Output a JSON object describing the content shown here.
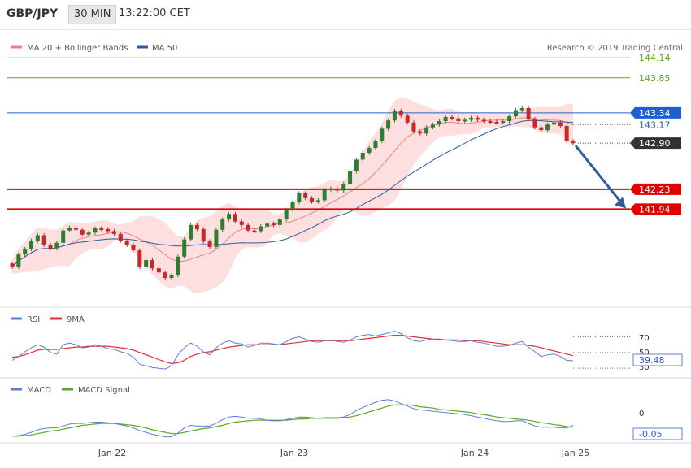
{
  "header": {
    "symbol": "GBP/JPY",
    "timeframe": "30 MIN",
    "time": "13:22:00 CET"
  },
  "credit": "Research © 2019 Trading Central",
  "colors": {
    "ma20": "#f08080",
    "ma50": "#2c5d9a",
    "resistance": "#5aaa1e",
    "support": "#e00000",
    "ma50_line": "#1f5fd6",
    "up": "#2e7d32",
    "down": "#c62828",
    "current": "#333333",
    "band_fill": "#fdd9d9",
    "rsi": "#5b7fd6",
    "rsi_ma": "#e03030",
    "macd": "#5b7fd6",
    "macd_signal": "#5aaa1e",
    "arrow": "#2c5d9a"
  },
  "chart_data": [
    {
      "type": "candlestick",
      "legend": [
        {
          "name": "MA 20 + Bollinger Bands",
          "color": "#f08080"
        },
        {
          "name": "MA 50",
          "color": "#2c5d9a"
        }
      ],
      "x_ticks": [
        "Jan 22",
        "Jan 23",
        "Jan 24",
        "Jan 25"
      ],
      "y_range": [
        140.55,
        144.45
      ],
      "levels": [
        {
          "value": 144.14,
          "label": "144.14",
          "kind": "resistance"
        },
        {
          "value": 143.85,
          "label": "143.85",
          "kind": "resistance"
        },
        {
          "value": 143.34,
          "label": "143.34",
          "kind": "ma50"
        },
        {
          "value": 143.17,
          "label": "143.17",
          "kind": "ma20"
        },
        {
          "value": 142.9,
          "label": "142.90",
          "kind": "current"
        },
        {
          "value": 142.23,
          "label": "142.23",
          "kind": "support"
        },
        {
          "value": 141.94,
          "label": "141.94",
          "kind": "support"
        }
      ],
      "forecast_arrow": {
        "from": 142.9,
        "to": 141.94
      },
      "close_path": [
        141.1,
        141.28,
        141.36,
        141.48,
        141.56,
        141.42,
        141.37,
        141.45,
        141.63,
        141.67,
        141.64,
        141.57,
        141.6,
        141.66,
        141.65,
        141.62,
        141.58,
        141.48,
        141.42,
        141.34,
        141.1,
        141.2,
        141.08,
        141.02,
        140.94,
        140.98,
        141.25,
        141.5,
        141.71,
        141.65,
        141.47,
        141.39,
        141.64,
        141.79,
        141.87,
        141.76,
        141.71,
        141.63,
        141.62,
        141.69,
        141.73,
        141.71,
        141.79,
        141.93,
        142.04,
        142.17,
        142.1,
        142.05,
        142.07,
        142.22,
        142.24,
        142.21,
        142.31,
        142.49,
        142.66,
        142.76,
        142.83,
        142.93,
        143.11,
        143.23,
        143.37,
        143.3,
        143.2,
        143.07,
        143.04,
        143.13,
        143.17,
        143.22,
        143.28,
        143.26,
        143.22,
        143.24,
        143.27,
        143.24,
        143.22,
        143.21,
        143.2,
        143.22,
        143.29,
        143.38,
        143.41,
        143.25,
        143.13,
        143.09,
        143.17,
        143.2,
        143.15,
        142.93,
        142.9
      ]
    },
    {
      "type": "line",
      "legend": [
        {
          "name": "RSI",
          "color": "#5b7fd6"
        },
        {
          "name": "9MA",
          "color": "#e03030"
        }
      ],
      "y_ticks": [
        "70",
        "50",
        "30"
      ],
      "y_range": [
        25,
        85
      ],
      "current_label": "39.48",
      "series": [
        {
          "name": "RSI",
          "values": [
            40,
            45,
            51,
            56,
            60,
            57,
            50,
            48,
            60,
            62,
            60,
            56,
            57,
            60,
            58,
            55,
            54,
            51,
            49,
            44,
            35,
            33,
            31,
            30,
            29,
            33,
            47,
            56,
            62,
            58,
            51,
            47,
            56,
            62,
            65,
            62,
            61,
            57,
            59,
            62,
            62,
            61,
            60,
            64,
            68,
            70,
            67,
            64,
            63,
            65,
            66,
            64,
            63,
            66,
            70,
            72,
            73,
            71,
            73,
            75,
            77,
            74,
            69,
            65,
            64,
            66,
            67,
            66,
            66,
            65,
            64,
            64,
            65,
            63,
            62,
            60,
            58,
            58,
            59,
            62,
            64,
            57,
            51,
            45,
            47,
            48,
            45,
            40,
            39.48
          ]
        },
        {
          "name": "9MA",
          "values": [
            44,
            45,
            47,
            50,
            53,
            54,
            54,
            54,
            55,
            56,
            57,
            57,
            58,
            58,
            58,
            58,
            57,
            56,
            55,
            53,
            50,
            47,
            44,
            41,
            38,
            36,
            37,
            40,
            45,
            48,
            50,
            51,
            53,
            55,
            57,
            58,
            59,
            60,
            60,
            60,
            60,
            60,
            60,
            61,
            62,
            63,
            64,
            65,
            65,
            65,
            65,
            65,
            65,
            65,
            66,
            67,
            68,
            69,
            70,
            71,
            72,
            72,
            71,
            70,
            69,
            68,
            67,
            67,
            66,
            66,
            66,
            65,
            65,
            65,
            64,
            63,
            62,
            61,
            60,
            60,
            60,
            59,
            58,
            56,
            54,
            52,
            50,
            48,
            46
          ]
        }
      ]
    },
    {
      "type": "line",
      "legend": [
        {
          "name": "MACD",
          "color": "#5b7fd6"
        },
        {
          "name": "MACD Signal",
          "color": "#5aaa1e"
        }
      ],
      "y_ticks": [
        "0"
      ],
      "current_label": "-0.05",
      "series": [
        {
          "name": "MACD",
          "values": [
            -0.22,
            -0.21,
            -0.19,
            -0.16,
            -0.12,
            -0.1,
            -0.09,
            -0.09,
            -0.06,
            -0.03,
            -0.02,
            -0.02,
            -0.01,
            0.0,
            0.0,
            -0.01,
            -0.02,
            -0.04,
            -0.06,
            -0.09,
            -0.13,
            -0.16,
            -0.19,
            -0.21,
            -0.23,
            -0.23,
            -0.17,
            -0.09,
            -0.05,
            -0.06,
            -0.06,
            -0.06,
            -0.02,
            0.04,
            0.08,
            0.09,
            0.08,
            0.06,
            0.06,
            0.05,
            0.03,
            0.02,
            0.02,
            0.04,
            0.06,
            0.08,
            0.08,
            0.07,
            0.06,
            0.07,
            0.07,
            0.07,
            0.08,
            0.12,
            0.18,
            0.23,
            0.27,
            0.31,
            0.34,
            0.35,
            0.33,
            0.29,
            0.25,
            0.21,
            0.19,
            0.18,
            0.17,
            0.16,
            0.15,
            0.14,
            0.13,
            0.12,
            0.1,
            0.08,
            0.06,
            0.04,
            0.02,
            0.01,
            0.01,
            0.02,
            0.02,
            -0.02,
            -0.06,
            -0.08,
            -0.08,
            -0.08,
            -0.09,
            -0.09,
            -0.05
          ]
        },
        {
          "name": "MACD Signal",
          "values": [
            -0.22,
            -0.22,
            -0.21,
            -0.2,
            -0.18,
            -0.16,
            -0.14,
            -0.13,
            -0.11,
            -0.09,
            -0.07,
            -0.05,
            -0.04,
            -0.03,
            -0.02,
            -0.02,
            -0.02,
            -0.03,
            -0.04,
            -0.05,
            -0.07,
            -0.09,
            -0.12,
            -0.14,
            -0.16,
            -0.18,
            -0.18,
            -0.16,
            -0.14,
            -0.12,
            -0.1,
            -0.09,
            -0.07,
            -0.05,
            -0.02,
            0.0,
            0.01,
            0.02,
            0.03,
            0.03,
            0.03,
            0.03,
            0.03,
            0.03,
            0.04,
            0.05,
            0.05,
            0.06,
            0.06,
            0.06,
            0.06,
            0.06,
            0.07,
            0.08,
            0.1,
            0.13,
            0.16,
            0.19,
            0.22,
            0.25,
            0.27,
            0.27,
            0.27,
            0.26,
            0.24,
            0.23,
            0.22,
            0.2,
            0.19,
            0.18,
            0.17,
            0.16,
            0.15,
            0.13,
            0.12,
            0.1,
            0.08,
            0.07,
            0.06,
            0.05,
            0.04,
            0.03,
            0.01,
            -0.01,
            -0.02,
            -0.04,
            -0.05,
            -0.07,
            -0.08
          ]
        }
      ]
    }
  ]
}
